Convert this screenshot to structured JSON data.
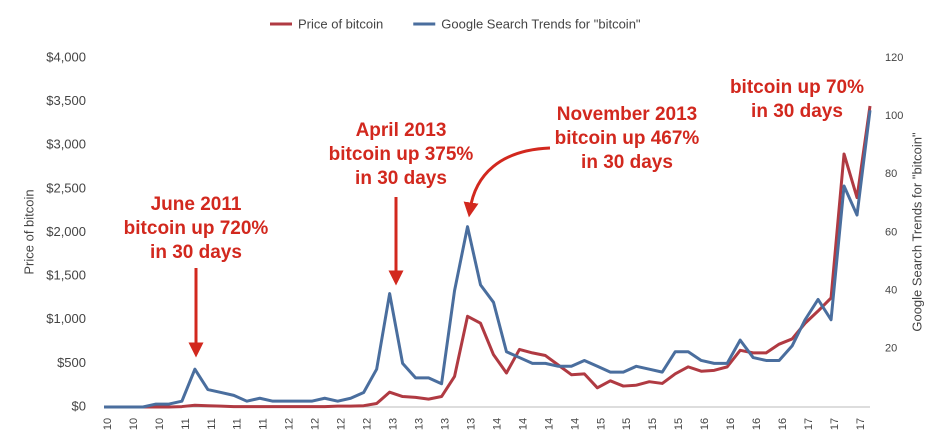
{
  "chart_data": {
    "type": "line",
    "legend": "top",
    "ylabel": "Price of bitcoin",
    "y2label": "Google Search Trends for \"bitcoin\"",
    "categories": [
      "10",
      null,
      "10",
      null,
      "10",
      null,
      "11",
      null,
      "11",
      null,
      "11",
      null,
      "11",
      null,
      "12",
      null,
      "12",
      null,
      "12",
      null,
      "12",
      null,
      "13",
      null,
      "13",
      null,
      "13",
      null,
      "13",
      null,
      "14",
      null,
      "14",
      null,
      "14",
      null,
      "14",
      null,
      "15",
      null,
      "15",
      null,
      "15",
      null,
      "15",
      null,
      "16",
      null,
      "16",
      null,
      "16",
      null,
      "16",
      null,
      "17",
      null,
      "17",
      null,
      "17",
      null
    ],
    "series": [
      {
        "name": "Price of bitcoin",
        "color": "#b03a42",
        "values": [
          0,
          0,
          0,
          0,
          0,
          0,
          5,
          20,
          15,
          10,
          5,
          5,
          5,
          5,
          5,
          5,
          5,
          5,
          10,
          10,
          15,
          40,
          170,
          120,
          110,
          90,
          120,
          350,
          1040,
          960,
          600,
          390,
          660,
          620,
          590,
          480,
          370,
          380,
          220,
          300,
          240,
          250,
          290,
          270,
          380,
          460,
          410,
          420,
          460,
          650,
          620,
          620,
          720,
          780,
          960,
          1100,
          1250,
          2900,
          2400,
          3450
        ]
      },
      {
        "name": "Google Search Trends for \"bitcoin\"",
        "color": "#4a6e9e",
        "axis": "y2",
        "values": [
          0,
          0,
          0,
          0,
          1,
          1,
          2,
          13,
          6,
          5,
          4,
          2,
          3,
          2,
          2,
          2,
          2,
          3,
          2,
          3,
          5,
          13,
          39,
          15,
          10,
          10,
          8,
          40,
          62,
          42,
          36,
          19,
          17,
          15,
          15,
          14,
          14,
          16,
          14,
          12,
          12,
          14,
          13,
          12,
          19,
          19,
          16,
          15,
          15,
          23,
          17,
          16,
          16,
          21,
          30,
          37,
          30,
          76,
          66,
          102
        ]
      }
    ],
    "ylim": [
      0,
      4000
    ],
    "yticks": [
      {
        "value": 0,
        "label": "$0"
      },
      {
        "value": 500,
        "label": "$500"
      },
      {
        "value": 1000,
        "label": "$1,000"
      },
      {
        "value": 1500,
        "label": "$1,500"
      },
      {
        "value": 2000,
        "label": "$2,000"
      },
      {
        "value": 2500,
        "label": "$2,500"
      },
      {
        "value": 3000,
        "label": "$3,000"
      },
      {
        "value": 3500,
        "label": "$3,500"
      },
      {
        "value": 4000,
        "label": "$4,000"
      }
    ],
    "y2lim": [
      0,
      120
    ],
    "y2ticks": [
      20,
      40,
      60,
      80,
      100,
      120
    ],
    "annotations": [
      {
        "lines": [
          "June 2011",
          "bitcoin up 720%",
          "in 30 days"
        ]
      },
      {
        "lines": [
          "April 2013",
          "bitcoin up 375%",
          "in 30 days"
        ]
      },
      {
        "lines": [
          "November 2013",
          "bitcoin up 467%",
          "in 30 days"
        ]
      },
      {
        "lines": [
          "bitcoin up 70%",
          "in 30 days"
        ]
      }
    ]
  }
}
